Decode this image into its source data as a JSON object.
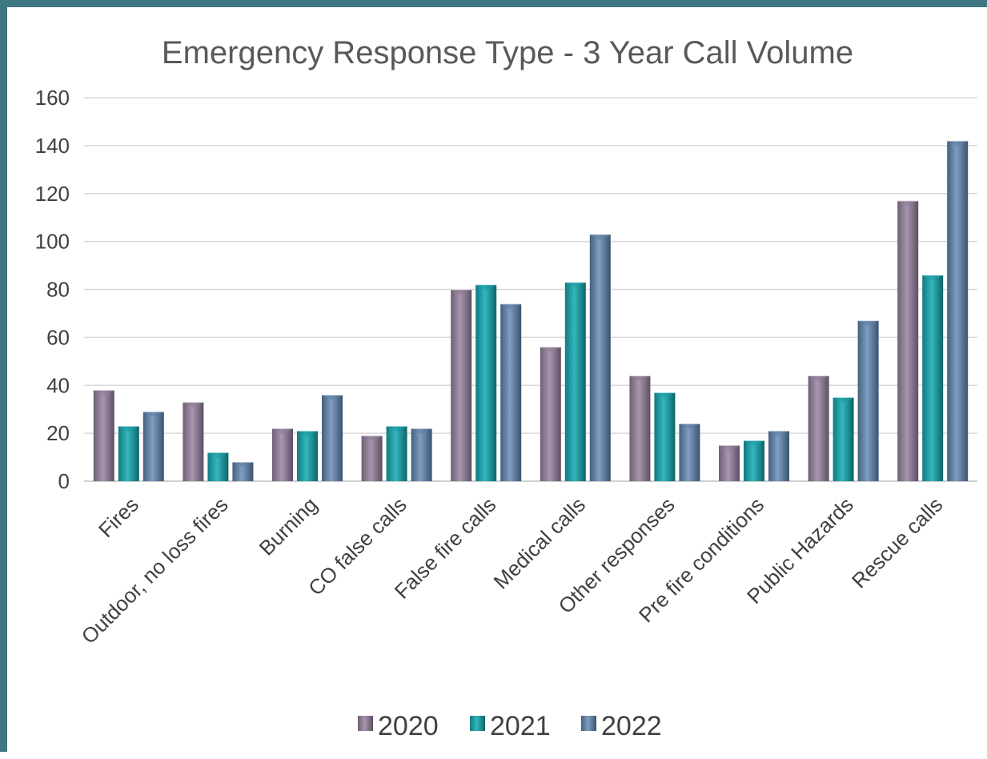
{
  "chart_data": {
    "type": "bar",
    "title": "Emergency Response Type - 3 Year Call Volume",
    "categories": [
      "Fires",
      "Outdoor, no loss fires",
      "Burning",
      "CO false calls",
      "False fire calls",
      "Medical calls",
      "Other responses",
      "Pre fire conditions",
      "Public Hazards",
      "Rescue calls"
    ],
    "series": [
      {
        "name": "2020",
        "color": "#8e7c95",
        "values": [
          38,
          33,
          22,
          19,
          80,
          56,
          44,
          15,
          44,
          117
        ]
      },
      {
        "name": "2021",
        "color": "#1e9aa2",
        "values": [
          23,
          12,
          21,
          23,
          82,
          83,
          37,
          17,
          35,
          86
        ]
      },
      {
        "name": "2022",
        "color": "#5f7fa3",
        "values": [
          29,
          8,
          36,
          22,
          74,
          103,
          24,
          21,
          67,
          142
        ]
      }
    ],
    "ylim": [
      0,
      160
    ],
    "yticks": [
      0,
      20,
      40,
      60,
      80,
      100,
      120,
      140,
      160
    ],
    "grid": true,
    "legend": "bottom"
  }
}
